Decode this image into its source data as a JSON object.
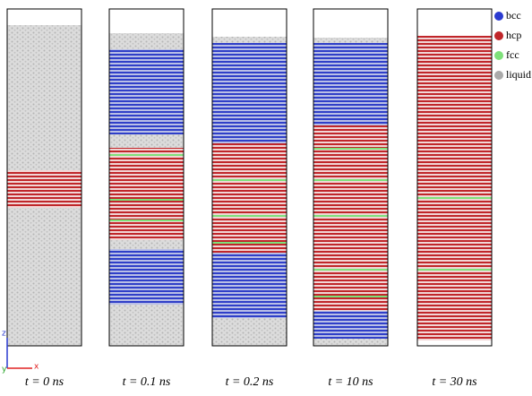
{
  "panels": [
    {
      "label": "t = 0 ns"
    },
    {
      "label": "t = 0.1 ns"
    },
    {
      "label": "t = 0.2 ns"
    },
    {
      "label": "t = 10 ns"
    },
    {
      "label": "t = 30 ns"
    }
  ],
  "legend": [
    {
      "label": "bcc"
    },
    {
      "label": "hcp"
    },
    {
      "label": "fcc"
    },
    {
      "label": "liquid"
    }
  ],
  "axes": {
    "z": "z",
    "x": "x",
    "y": "y"
  }
}
